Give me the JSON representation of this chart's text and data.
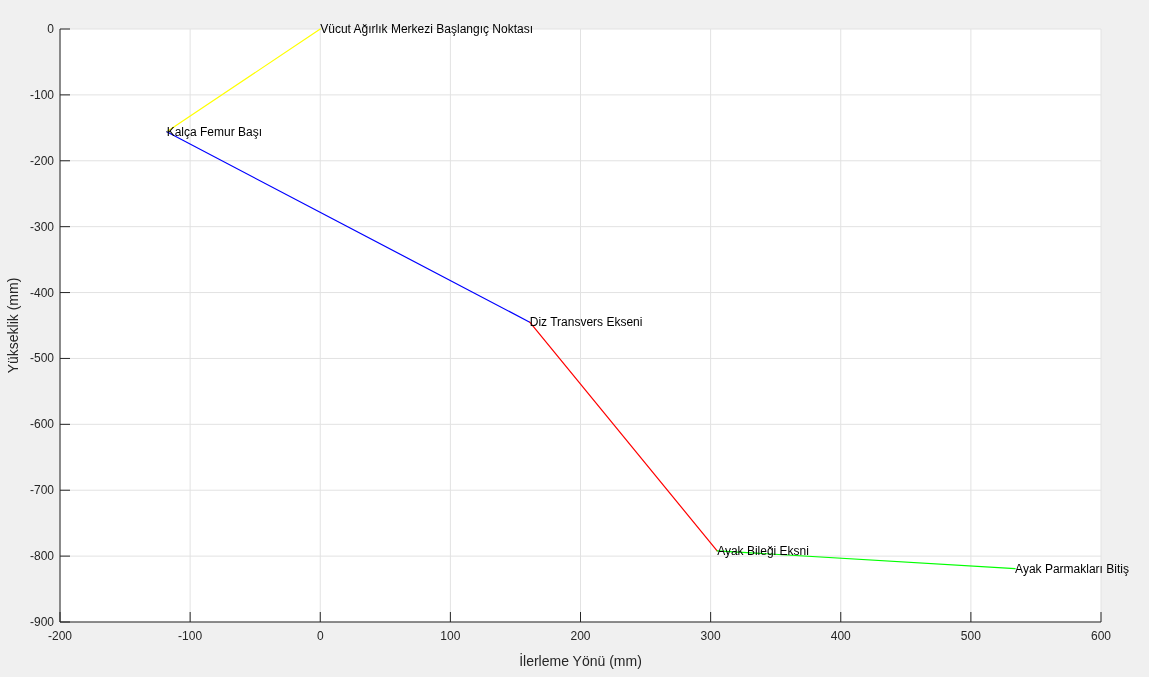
{
  "chart_data": {
    "type": "line",
    "xlabel": "İlerleme Yönü (mm)",
    "ylabel": "Yükseklik (mm)",
    "series": [
      {
        "color": "#ffff00",
        "x": [
          0,
          -118
        ],
        "values": [
          0,
          -156
        ]
      },
      {
        "color": "#0000ff",
        "x": [
          -118,
          161
        ],
        "values": [
          -156,
          -445
        ]
      },
      {
        "color": "#ff0000",
        "x": [
          161,
          305
        ],
        "values": [
          -445,
          -792
        ]
      },
      {
        "color": "#00ff00",
        "x": [
          305,
          534
        ],
        "values": [
          -792,
          -819
        ]
      }
    ],
    "annotations": [
      {
        "text": "Vücut Ağırlık Merkezi Başlangıç Noktası",
        "x": 0,
        "y": 0
      },
      {
        "text": "Kalça Femur Başı",
        "x": -118,
        "y": -156
      },
      {
        "text": "Diz Transvers Ekseni",
        "x": 161,
        "y": -445
      },
      {
        "text": "Ayak Bileği Eksni",
        "x": 305,
        "y": -792
      },
      {
        "text": "Ayak Parmakları Bitiş",
        "x": 534,
        "y": -819
      }
    ],
    "xlim": [
      -200,
      600
    ],
    "xticks": [
      -200,
      -100,
      0,
      100,
      200,
      300,
      400,
      500,
      600
    ],
    "ylim": [
      -900,
      0
    ],
    "yticks": [
      -900,
      -800,
      -700,
      -600,
      -500,
      -400,
      -300,
      -200,
      -100,
      0
    ],
    "grid": true,
    "marker": "none",
    "line_style": "solid"
  }
}
